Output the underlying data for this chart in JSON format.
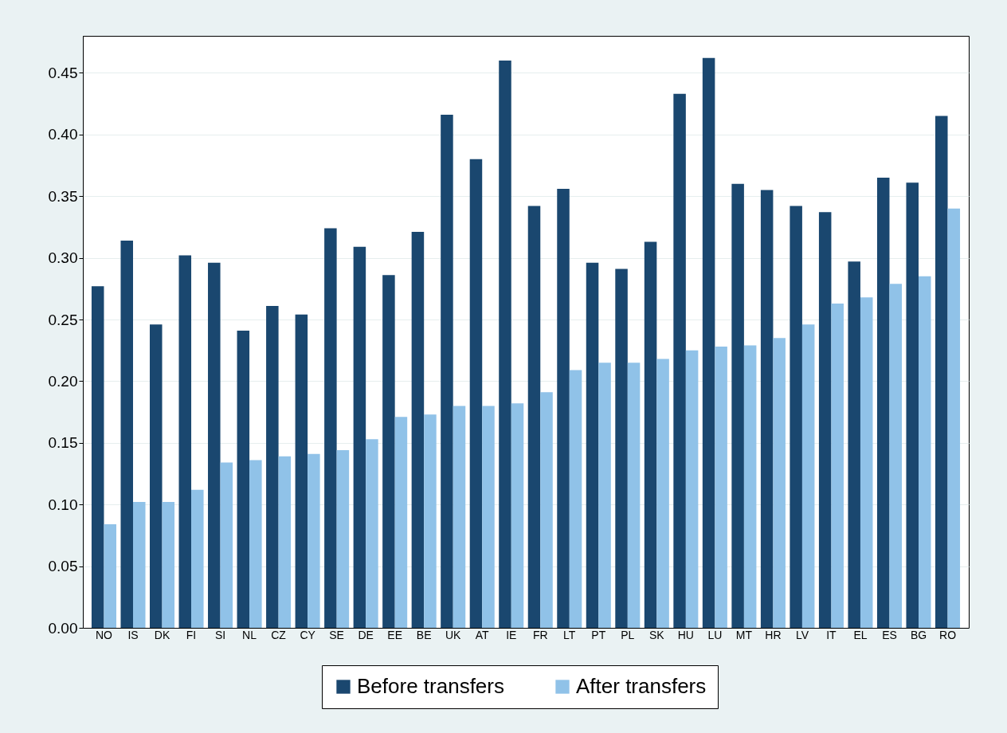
{
  "chart_data": {
    "type": "bar",
    "categories": [
      "NO",
      "IS",
      "DK",
      "FI",
      "SI",
      "NL",
      "CZ",
      "CY",
      "SE",
      "DE",
      "EE",
      "BE",
      "UK",
      "AT",
      "IE",
      "FR",
      "LT",
      "PT",
      "PL",
      "SK",
      "HU",
      "LU",
      "MT",
      "HR",
      "LV",
      "IT",
      "EL",
      "ES",
      "BG",
      "RO"
    ],
    "series": [
      {
        "name": "Before transfers",
        "color": "#1a476f",
        "values": [
          0.277,
          0.314,
          0.246,
          0.302,
          0.296,
          0.241,
          0.261,
          0.254,
          0.324,
          0.309,
          0.286,
          0.321,
          0.416,
          0.38,
          0.46,
          0.342,
          0.356,
          0.296,
          0.291,
          0.313,
          0.433,
          0.462,
          0.36,
          0.355,
          0.342,
          0.337,
          0.297,
          0.365,
          0.361,
          0.415
        ]
      },
      {
        "name": "After transfers",
        "color": "#90c2e8",
        "values": [
          0.084,
          0.102,
          0.102,
          0.112,
          0.134,
          0.136,
          0.139,
          0.141,
          0.144,
          0.153,
          0.171,
          0.173,
          0.18,
          0.18,
          0.182,
          0.191,
          0.209,
          0.215,
          0.215,
          0.218,
          0.225,
          0.228,
          0.229,
          0.235,
          0.246,
          0.263,
          0.268,
          0.279,
          0.285,
          0.34
        ]
      }
    ],
    "ylim": [
      0,
      0.48
    ],
    "yticks": [
      {
        "value": 0,
        "label": "0.00"
      },
      {
        "value": 0.05,
        "label": "0.05"
      },
      {
        "value": 0.1,
        "label": "0.10"
      },
      {
        "value": 0.15,
        "label": "0.15"
      },
      {
        "value": 0.2,
        "label": "0.20"
      },
      {
        "value": 0.25,
        "label": "0.25"
      },
      {
        "value": 0.3,
        "label": "0.30"
      },
      {
        "value": 0.35,
        "label": "0.35"
      },
      {
        "value": 0.4,
        "label": "0.40"
      },
      {
        "value": 0.45,
        "label": "0.45"
      }
    ],
    "grid": "y",
    "legend": "bottom"
  }
}
